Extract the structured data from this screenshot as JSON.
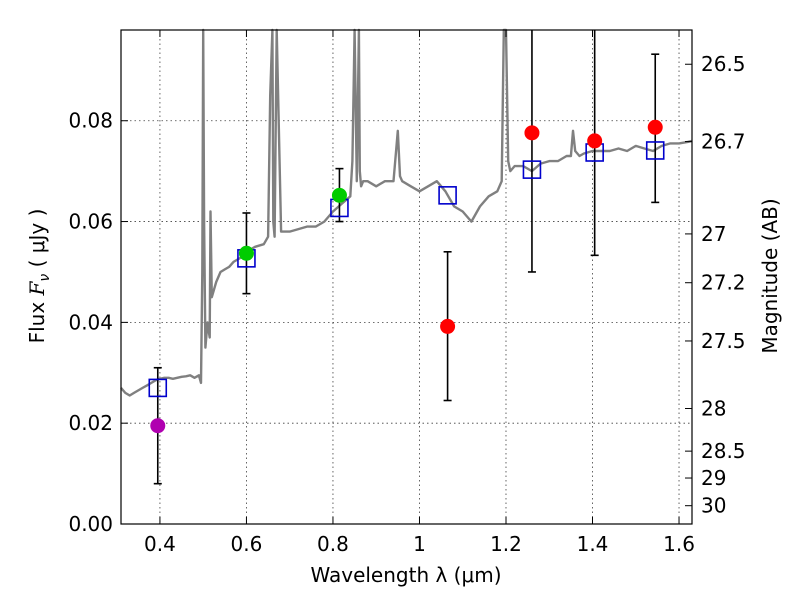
{
  "chart_data": {
    "type": "scatter",
    "xlabel": "Wavelength  λ (μm)",
    "ylabel": "Flux  F_ν  ( μJy )",
    "ylabel_parts": {
      "prefix": "Flux  ",
      "symbol": "F",
      "subscript": "ν",
      "unit": "  ( μJy )"
    },
    "y2label": "Magnitude (AB)",
    "xlim": [
      0.31,
      1.63
    ],
    "ylim": [
      0.0,
      0.098
    ],
    "grid": true,
    "x_ticks": [
      {
        "value": 0.4,
        "label": "0.4"
      },
      {
        "value": 0.6,
        "label": "0.6"
      },
      {
        "value": 0.8,
        "label": "0.8"
      },
      {
        "value": 1.0,
        "label": "1"
      },
      {
        "value": 1.2,
        "label": "1.2"
      },
      {
        "value": 1.4,
        "label": "1.4"
      },
      {
        "value": 1.6,
        "label": "1.6"
      }
    ],
    "y_ticks": [
      {
        "value": 0.0,
        "label": "0.00"
      },
      {
        "value": 0.02,
        "label": "0.02"
      },
      {
        "value": 0.04,
        "label": "0.04"
      },
      {
        "value": 0.06,
        "label": "0.06"
      },
      {
        "value": 0.08,
        "label": "0.08"
      }
    ],
    "y2_ticks": [
      {
        "mag": 26.5,
        "label": "26.5"
      },
      {
        "mag": 26.7,
        "label": "26.7"
      },
      {
        "mag": 27.0,
        "label": "27"
      },
      {
        "mag": 27.2,
        "label": "27.2"
      },
      {
        "mag": 27.5,
        "label": "27.5"
      },
      {
        "mag": 28.0,
        "label": "28"
      },
      {
        "mag": 28.5,
        "label": "28.5"
      },
      {
        "mag": 29.0,
        "label": "29"
      },
      {
        "mag": 30.0,
        "label": "30"
      }
    ],
    "observed": [
      {
        "x": 0.395,
        "y": 0.0195,
        "lo": 0.008,
        "hi": 0.031,
        "color": "#b000b0"
      },
      {
        "x": 0.6,
        "y": 0.0537,
        "lo": 0.0457,
        "hi": 0.0617,
        "color": "#00cc00"
      },
      {
        "x": 0.815,
        "y": 0.0652,
        "lo": 0.06,
        "hi": 0.0705,
        "color": "#00cc00"
      },
      {
        "x": 1.065,
        "y": 0.0392,
        "lo": 0.0245,
        "hi": 0.054,
        "color": "#ff0000"
      },
      {
        "x": 1.26,
        "y": 0.0776,
        "lo": 0.05,
        "hi": 0.0985,
        "color": "#ff0000"
      },
      {
        "x": 1.405,
        "y": 0.076,
        "lo": 0.0533,
        "hi": 0.0985,
        "color": "#ff0000"
      },
      {
        "x": 1.545,
        "y": 0.0787,
        "lo": 0.0638,
        "hi": 0.0932,
        "color": "#ff0000"
      }
    ],
    "model_photometry": {
      "marker": "open-square",
      "color": "#0000cc",
      "points": [
        {
          "x": 0.395,
          "y": 0.027
        },
        {
          "x": 0.6,
          "y": 0.0527
        },
        {
          "x": 0.815,
          "y": 0.0627
        },
        {
          "x": 1.065,
          "y": 0.0652
        },
        {
          "x": 1.26,
          "y": 0.0703
        },
        {
          "x": 1.405,
          "y": 0.0737
        },
        {
          "x": 1.545,
          "y": 0.0741
        }
      ]
    },
    "model_spectrum": {
      "color": "#808080",
      "x": [
        0.31,
        0.32,
        0.33,
        0.34,
        0.35,
        0.36,
        0.37,
        0.38,
        0.39,
        0.4,
        0.41,
        0.42,
        0.43,
        0.44,
        0.45,
        0.46,
        0.47,
        0.48,
        0.49,
        0.495,
        0.498,
        0.5,
        0.502,
        0.505,
        0.51,
        0.515,
        0.517,
        0.52,
        0.53,
        0.54,
        0.55,
        0.56,
        0.57,
        0.58,
        0.59,
        0.6,
        0.62,
        0.64,
        0.65,
        0.655,
        0.66,
        0.662,
        0.665,
        0.67,
        0.68,
        0.7,
        0.72,
        0.74,
        0.76,
        0.78,
        0.8,
        0.82,
        0.84,
        0.845,
        0.85,
        0.855,
        0.86,
        0.862,
        0.865,
        0.87,
        0.88,
        0.9,
        0.92,
        0.94,
        0.95,
        0.955,
        0.96,
        0.98,
        1.0,
        1.02,
        1.04,
        1.06,
        1.08,
        1.1,
        1.12,
        1.14,
        1.16,
        1.18,
        1.19,
        1.195,
        1.2,
        1.205,
        1.21,
        1.22,
        1.24,
        1.26,
        1.28,
        1.3,
        1.32,
        1.34,
        1.35,
        1.355,
        1.36,
        1.37,
        1.38,
        1.4,
        1.42,
        1.44,
        1.46,
        1.48,
        1.5,
        1.52,
        1.54,
        1.56,
        1.58,
        1.6,
        1.62,
        1.63
      ],
      "y": [
        0.027,
        0.026,
        0.0255,
        0.026,
        0.0265,
        0.027,
        0.0275,
        0.028,
        0.0285,
        0.0288,
        0.029,
        0.029,
        0.0288,
        0.029,
        0.0292,
        0.0293,
        0.0295,
        0.029,
        0.0295,
        0.028,
        0.05,
        0.098,
        0.06,
        0.035,
        0.04,
        0.037,
        0.062,
        0.045,
        0.048,
        0.05,
        0.0505,
        0.051,
        0.052,
        0.0525,
        0.053,
        0.054,
        0.055,
        0.0555,
        0.057,
        0.085,
        0.098,
        0.06,
        0.057,
        0.098,
        0.058,
        0.058,
        0.0585,
        0.059,
        0.059,
        0.06,
        0.062,
        0.0635,
        0.065,
        0.072,
        0.098,
        0.068,
        0.098,
        0.07,
        0.067,
        0.068,
        0.068,
        0.067,
        0.068,
        0.068,
        0.078,
        0.069,
        0.068,
        0.067,
        0.066,
        0.067,
        0.068,
        0.066,
        0.063,
        0.062,
        0.06,
        0.063,
        0.065,
        0.066,
        0.068,
        0.098,
        0.098,
        0.072,
        0.07,
        0.071,
        0.071,
        0.07,
        0.0715,
        0.072,
        0.072,
        0.073,
        0.073,
        0.078,
        0.074,
        0.073,
        0.0735,
        0.074,
        0.074,
        0.074,
        0.0745,
        0.074,
        0.075,
        0.0745,
        0.074,
        0.075,
        0.0755,
        0.0755,
        0.0758,
        0.076
      ]
    }
  }
}
